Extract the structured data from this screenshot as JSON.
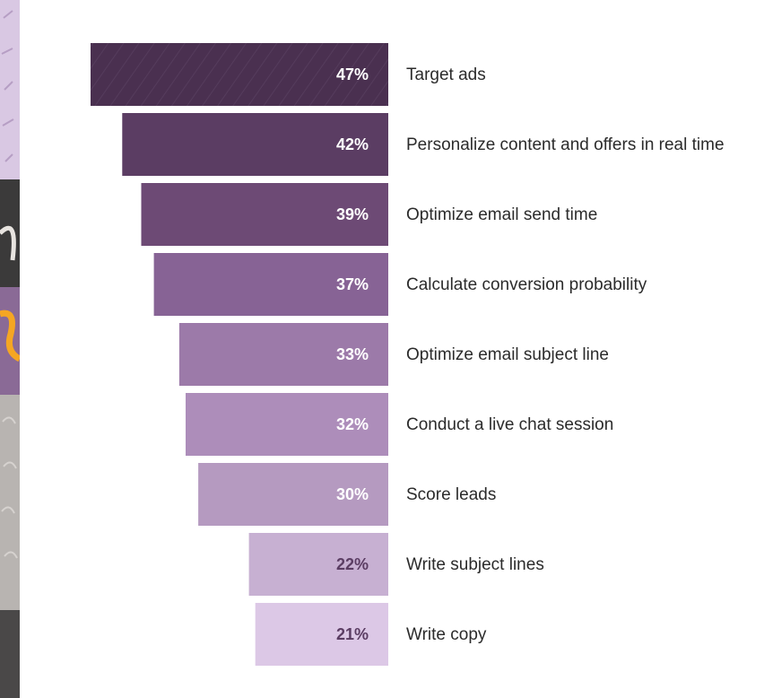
{
  "chart_data": {
    "type": "bar",
    "orientation": "horizontal",
    "categories": [
      "Target ads",
      "Personalize content and offers in real time",
      "Optimize email send time",
      "Calculate conversion probability",
      "Optimize email subject line",
      "Conduct a live chat session",
      "Score leads",
      "Write subject lines",
      "Write copy"
    ],
    "values": [
      47,
      42,
      39,
      37,
      33,
      32,
      30,
      22,
      21
    ],
    "value_labels": [
      "47%",
      "42%",
      "39%",
      "37%",
      "33%",
      "32%",
      "30%",
      "22%",
      "21%"
    ],
    "bar_colors": [
      "#4a3050",
      "#5b3d63",
      "#6d4a75",
      "#876395",
      "#9c7aa9",
      "#ad8dba",
      "#b59ac0",
      "#c7b0d2",
      "#dcc8e6"
    ],
    "value_text_colors": [
      "#ffffff",
      "#ffffff",
      "#ffffff",
      "#ffffff",
      "#ffffff",
      "#ffffff",
      "#ffffff",
      "#5b3d63",
      "#5b3d63"
    ],
    "label_color": "#2b2b2b",
    "bar_alignment": "right",
    "xlim": [
      0,
      47
    ]
  },
  "decor": {
    "strip_colors": [
      "#d7c7e0",
      "#3a3a3a",
      "#b9b5b2",
      "#8a6a96",
      "#f5a623"
    ]
  }
}
